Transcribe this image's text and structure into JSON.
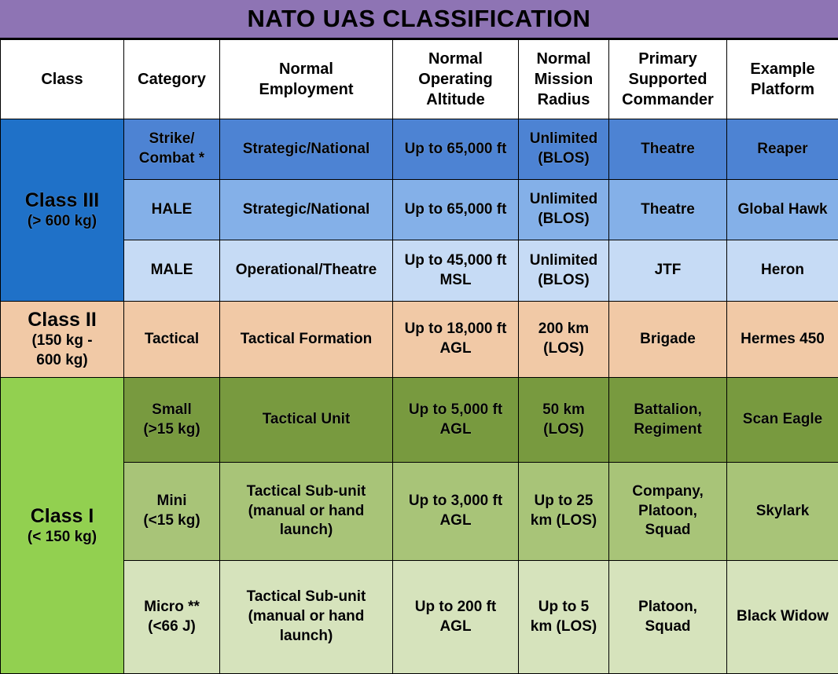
{
  "title": "NATO UAS CLASSIFICATION",
  "headers": {
    "class": "Class",
    "category": "Category",
    "employment": [
      "Normal",
      "Employment"
    ],
    "altitude": [
      "Normal",
      "Operating",
      "Altitude"
    ],
    "radius": [
      "Normal",
      "Mission",
      "Radius"
    ],
    "commander": [
      "Primary",
      "Supported",
      "Commander"
    ],
    "platform": [
      "Example",
      "Platform"
    ]
  },
  "classes": [
    {
      "name": "Class III",
      "range": [
        "(> 600 kg)"
      ],
      "color": "#1f71c8",
      "rows": [
        {
          "category": [
            "Strike/",
            "Combat *"
          ],
          "employment": [
            "Strategic/National"
          ],
          "altitude": [
            "Up to 65,000 ft"
          ],
          "radius": [
            "Unlimited",
            "(BLOS)"
          ],
          "commander": [
            "Theatre"
          ],
          "platform": [
            "Reaper"
          ],
          "color": "#4d83d3"
        },
        {
          "category": [
            "HALE"
          ],
          "employment": [
            "Strategic/National"
          ],
          "altitude": [
            "Up to 65,000 ft"
          ],
          "radius": [
            "Unlimited",
            "(BLOS)"
          ],
          "commander": [
            "Theatre"
          ],
          "platform": [
            "Global Hawk"
          ],
          "color": "#84b0e8"
        },
        {
          "category": [
            "MALE"
          ],
          "employment": [
            "Operational/Theatre"
          ],
          "altitude": [
            "Up to 45,000 ft",
            "MSL"
          ],
          "radius": [
            "Unlimited",
            "(BLOS)"
          ],
          "commander": [
            "JTF"
          ],
          "platform": [
            "Heron"
          ],
          "color": "#c6dbf5"
        }
      ]
    },
    {
      "name": "Class II",
      "range": [
        "(150 kg -",
        "600 kg)"
      ],
      "color": "#f1c9a6",
      "rows": [
        {
          "category": [
            "Tactical"
          ],
          "employment": [
            "Tactical Formation"
          ],
          "altitude": [
            "Up to 18,000 ft",
            "AGL"
          ],
          "radius": [
            "200 km",
            "(LOS)"
          ],
          "commander": [
            "Brigade"
          ],
          "platform": [
            "Hermes 450"
          ],
          "color": "#f1c9a6"
        }
      ]
    },
    {
      "name": "Class I",
      "range": [
        "(< 150 kg)"
      ],
      "color": "#92d050",
      "rows": [
        {
          "category": [
            "Small",
            "(>15 kg)"
          ],
          "employment": [
            "Tactical Unit"
          ],
          "altitude": [
            "Up to 5,000 ft",
            "AGL"
          ],
          "radius": [
            "50 km",
            "(LOS)"
          ],
          "commander": [
            "Battalion,",
            "Regiment"
          ],
          "platform": [
            "Scan Eagle"
          ],
          "color": "#789a3f"
        },
        {
          "category": [
            "Mini",
            "(<15 kg)"
          ],
          "employment": [
            "Tactical Sub-unit",
            "(manual or hand",
            "launch)"
          ],
          "altitude": [
            "Up to 3,000 ft",
            "AGL"
          ],
          "radius": [
            "Up to 25",
            "km (LOS)"
          ],
          "commander": [
            "Company,",
            "Platoon,",
            "Squad"
          ],
          "platform": [
            "Skylark"
          ],
          "color": "#a8c478"
        },
        {
          "category": [
            "Micro **",
            "(<66 J)"
          ],
          "employment": [
            "Tactical Sub-unit",
            "(manual or hand",
            "launch)"
          ],
          "altitude": [
            "Up to 200 ft",
            "AGL"
          ],
          "radius": [
            "Up to 5",
            "km (LOS)"
          ],
          "commander": [
            "Platoon,",
            "Squad"
          ],
          "platform": [
            "Black Widow"
          ],
          "color": "#d6e3bc"
        }
      ]
    }
  ]
}
